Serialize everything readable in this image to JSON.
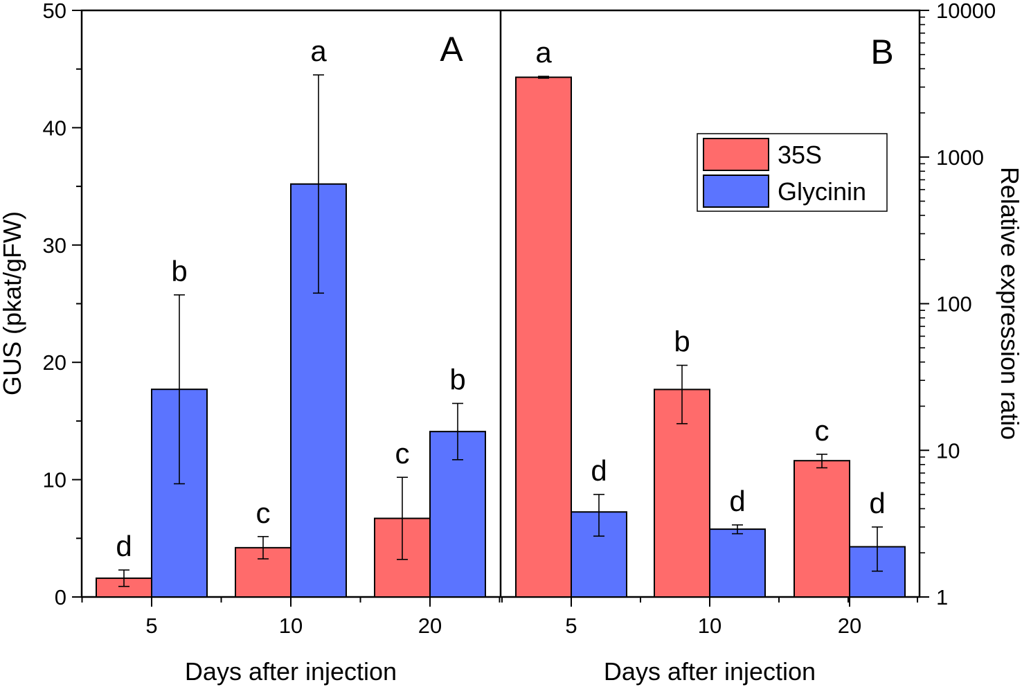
{
  "chart_data": [
    {
      "panel": "A",
      "type": "bar",
      "xlabel": "Days after injection",
      "ylabel": "GUS (pkat/gFW)",
      "yscale": "linear",
      "ylim": [
        0,
        50
      ],
      "yticks": [
        0,
        10,
        20,
        30,
        40,
        50
      ],
      "categories": [
        "5",
        "10",
        "20"
      ],
      "series": [
        {
          "name": "35S",
          "values": [
            1.6,
            4.2,
            6.7
          ],
          "errors": [
            0.7,
            0.95,
            3.5
          ],
          "letters": [
            "d",
            "c",
            "c"
          ]
        },
        {
          "name": "Glycinin",
          "values": [
            17.7,
            35.2,
            14.1
          ],
          "errors": [
            8.05,
            9.3,
            2.4
          ],
          "letters": [
            "b",
            "a",
            "b"
          ]
        }
      ]
    },
    {
      "panel": "B",
      "type": "bar",
      "xlabel": "Days after injection",
      "ylabel": "Relative expression ratio",
      "yscale": "log",
      "ylim": [
        1,
        10000
      ],
      "yticks": [
        1,
        10,
        100,
        1000,
        10000
      ],
      "categories": [
        "5",
        "10",
        "20"
      ],
      "series": [
        {
          "name": "35S",
          "values": [
            3500,
            26,
            8.5
          ],
          "err_low": [
            3450,
            15.2,
            7.6
          ],
          "err_high": [
            3550,
            38,
            9.4
          ],
          "letters": [
            "a",
            "b",
            "c"
          ]
        },
        {
          "name": "Glycinin",
          "values": [
            3.8,
            2.9,
            2.2
          ],
          "err_low": [
            2.6,
            2.7,
            1.5
          ],
          "err_high": [
            5.0,
            3.1,
            3.0
          ],
          "letters": [
            "d",
            "d",
            "d"
          ]
        }
      ]
    }
  ],
  "legend": {
    "position": "top-right of panel B",
    "entries": [
      {
        "label": "35S",
        "color": "#FF6B6B"
      },
      {
        "label": "Glycinin",
        "color": "#5B74FF"
      }
    ]
  },
  "colors": {
    "s35": "#FF6B6B",
    "glycinin": "#5B74FF",
    "axis": "#000000"
  }
}
